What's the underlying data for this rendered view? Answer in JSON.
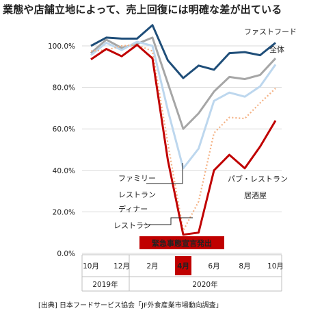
{
  "title": "業態や店舗立地によって、売上回復には明確な差が出ている",
  "source": "[出典] 日本フードサービス協会「JF外食産業市場動向調査」",
  "chart_data": {
    "type": "line",
    "ylim": [
      0,
      110
    ],
    "yticks": [
      "0.0%",
      "20.0%",
      "40.0%",
      "60.0%",
      "80.0%",
      "100.0%"
    ],
    "ytick_values": [
      0,
      20,
      40,
      60,
      80,
      100
    ],
    "x_tick_labels": [
      "10月",
      "12月",
      "2月",
      "4月",
      "6月",
      "8月",
      "10月"
    ],
    "x_tick_index": [
      0,
      2,
      4,
      6,
      8,
      10,
      12
    ],
    "highlight_tick": "4月",
    "year_labels": [
      "2019年",
      "2020年"
    ],
    "annotation": "緊急事態宣言発出",
    "grid": true,
    "series": [
      {
        "name": "ファストフード",
        "color": "#1f4e79",
        "dash": "",
        "values": [
          100,
          104,
          103.5,
          103.5,
          110,
          93,
          84.5,
          90.5,
          88.5,
          96.5,
          97,
          95.5,
          101.5
        ]
      },
      {
        "name": "全体",
        "color": "#a6a6a6",
        "dash": "",
        "values": [
          96.5,
          103,
          99,
          101,
          104,
          82,
          60,
          67.5,
          78,
          85,
          84,
          86,
          94
        ]
      },
      {
        "name": "ファミリーレストラン",
        "color": "#bdd7ee",
        "dash": "",
        "values": [
          95.5,
          101.5,
          98,
          102,
          100,
          69,
          41,
          50.5,
          73.5,
          77.5,
          75.5,
          80.5,
          91
        ]
      },
      {
        "name": "ディナーレストラン",
        "color": "#f4b183",
        "dash": "2,3",
        "values": [
          97.5,
          98,
          100,
          100.5,
          97.5,
          53,
          11,
          25,
          58,
          65.5,
          65,
          72.5,
          79.5
        ]
      },
      {
        "name": "パブ・レストラン居酒屋",
        "color": "#c00000",
        "dash": "",
        "values": [
          93.5,
          98.5,
          95,
          100.5,
          94,
          45,
          9,
          10,
          40,
          47.5,
          41,
          51.5,
          64
        ]
      }
    ]
  },
  "labels": {
    "fastfood": "ファストフード",
    "all": "全体",
    "family_1": "ファミリー",
    "family_2": "レストラン",
    "dinner_1": "ディナー",
    "dinner_2": "レストラン",
    "pub_1": "パブ・レストラン",
    "pub_2": "居酒屋"
  }
}
